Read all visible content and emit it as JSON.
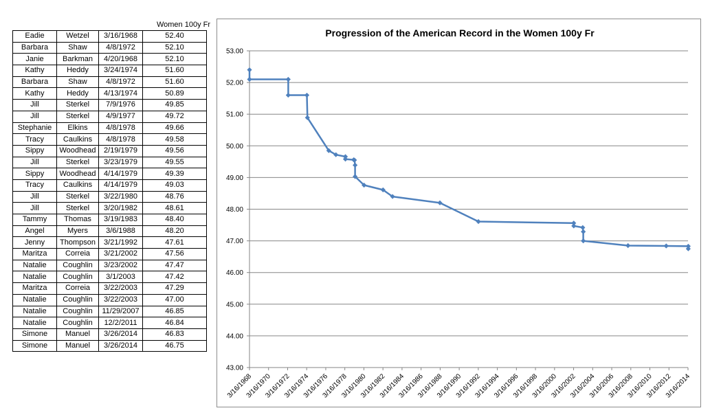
{
  "table": {
    "header": "Women 100y Fr",
    "rows": [
      {
        "first": "Eadie",
        "last": "Wetzel",
        "date": "3/16/1968",
        "time": "52.40"
      },
      {
        "first": "Barbara",
        "last": "Shaw",
        "date": "4/8/1972",
        "time": "52.10"
      },
      {
        "first": "Janie",
        "last": "Barkman",
        "date": "4/20/1968",
        "time": "52.10"
      },
      {
        "first": "Kathy",
        "last": "Heddy",
        "date": "3/24/1974",
        "time": "51.60"
      },
      {
        "first": "Barbara",
        "last": "Shaw",
        "date": "4/8/1972",
        "time": "51.60"
      },
      {
        "first": "Kathy",
        "last": "Heddy",
        "date": "4/13/1974",
        "time": "50.89"
      },
      {
        "first": "Jill",
        "last": "Sterkel",
        "date": "7/9/1976",
        "time": "49.85"
      },
      {
        "first": "Jill",
        "last": "Sterkel",
        "date": "4/9/1977",
        "time": "49.72"
      },
      {
        "first": "Stephanie",
        "last": "Elkins",
        "date": "4/8/1978",
        "time": "49.66"
      },
      {
        "first": "Tracy",
        "last": "Caulkins",
        "date": "4/8/1978",
        "time": "49.58"
      },
      {
        "first": "Sippy",
        "last": "Woodhead",
        "date": "2/19/1979",
        "time": "49.56"
      },
      {
        "first": "Jill",
        "last": "Sterkel",
        "date": "3/23/1979",
        "time": "49.55"
      },
      {
        "first": "Sippy",
        "last": "Woodhead",
        "date": "4/14/1979",
        "time": "49.39"
      },
      {
        "first": "Tracy",
        "last": "Caulkins",
        "date": "4/14/1979",
        "time": "49.03"
      },
      {
        "first": "Jill",
        "last": "Sterkel",
        "date": "3/22/1980",
        "time": "48.76"
      },
      {
        "first": "Jill",
        "last": "Sterkel",
        "date": "3/20/1982",
        "time": "48.61"
      },
      {
        "first": "Tammy",
        "last": "Thomas",
        "date": "3/19/1983",
        "time": "48.40"
      },
      {
        "first": "Angel",
        "last": "Myers",
        "date": "3/6/1988",
        "time": "48.20"
      },
      {
        "first": "Jenny",
        "last": "Thompson",
        "date": "3/21/1992",
        "time": "47.61"
      },
      {
        "first": "Maritza",
        "last": "Correia",
        "date": "3/21/2002",
        "time": "47.56"
      },
      {
        "first": "Natalie",
        "last": "Coughlin",
        "date": "3/23/2002",
        "time": "47.47"
      },
      {
        "first": "Natalie",
        "last": "Coughlin",
        "date": "3/1/2003",
        "time": "47.42"
      },
      {
        "first": "Maritza",
        "last": "Correia",
        "date": "3/22/2003",
        "time": "47.29"
      },
      {
        "first": "Natalie",
        "last": "Coughlin",
        "date": "3/22/2003",
        "time": "47.00"
      },
      {
        "first": "Natalie",
        "last": "Coughlin",
        "date": "11/29/2007",
        "time": "46.85"
      },
      {
        "first": "Natalie",
        "last": "Coughlin",
        "date": "12/2/2011",
        "time": "46.84"
      },
      {
        "first": "Simone",
        "last": "Manuel",
        "date": "3/26/2014",
        "time": "46.83"
      },
      {
        "first": "Simone",
        "last": "Manuel",
        "date": "3/26/2014",
        "time": "46.75"
      }
    ]
  },
  "chart_data": {
    "type": "line",
    "title": "Progression of the American Record in the Women 100y Fr",
    "xlabel": "",
    "ylabel": "",
    "x_type": "date",
    "xlim": [
      "3/16/1968",
      "3/16/2014"
    ],
    "x_ticks": [
      "3/16/1968",
      "3/16/1970",
      "3/16/1972",
      "3/16/1974",
      "3/16/1976",
      "3/16/1978",
      "3/16/1980",
      "3/16/1982",
      "3/16/1984",
      "3/16/1986",
      "3/16/1988",
      "3/16/1990",
      "3/16/1992",
      "3/16/1994",
      "3/16/1996",
      "3/16/1998",
      "3/16/2000",
      "3/16/2002",
      "3/16/2004",
      "3/16/2006",
      "3/16/2008",
      "3/16/2010",
      "3/16/2012",
      "3/16/2014"
    ],
    "ylim": [
      43,
      53
    ],
    "y_ticks": [
      "43.00",
      "44.00",
      "45.00",
      "46.00",
      "47.00",
      "48.00",
      "49.00",
      "50.00",
      "51.00",
      "52.00",
      "53.00"
    ],
    "grid": true,
    "legend": "none",
    "line_color": "#4f81bd",
    "gridline_color": "#868686",
    "series": [
      {
        "points": [
          {
            "x": "3/16/1968",
            "y": 52.4
          },
          {
            "x": "3/16/1968",
            "y": 52.1
          },
          {
            "x": "4/8/1972",
            "y": 52.1
          },
          {
            "x": "4/8/1972",
            "y": 51.6
          },
          {
            "x": "3/24/1974",
            "y": 51.6
          },
          {
            "x": "4/13/1974",
            "y": 50.89
          },
          {
            "x": "7/9/1976",
            "y": 49.85
          },
          {
            "x": "4/9/1977",
            "y": 49.72
          },
          {
            "x": "4/8/1978",
            "y": 49.66
          },
          {
            "x": "4/8/1978",
            "y": 49.58
          },
          {
            "x": "2/19/1979",
            "y": 49.56
          },
          {
            "x": "3/23/1979",
            "y": 49.55
          },
          {
            "x": "4/14/1979",
            "y": 49.39
          },
          {
            "x": "4/14/1979",
            "y": 49.03
          },
          {
            "x": "3/22/1980",
            "y": 48.76
          },
          {
            "x": "3/20/1982",
            "y": 48.61
          },
          {
            "x": "3/19/1983",
            "y": 48.4
          },
          {
            "x": "3/6/1988",
            "y": 48.2
          },
          {
            "x": "3/21/1992",
            "y": 47.61
          },
          {
            "x": "3/21/2002",
            "y": 47.56
          },
          {
            "x": "3/23/2002",
            "y": 47.47
          },
          {
            "x": "3/1/2003",
            "y": 47.42
          },
          {
            "x": "3/22/2003",
            "y": 47.29
          },
          {
            "x": "3/22/2003",
            "y": 47.0
          },
          {
            "x": "11/29/2007",
            "y": 46.85
          },
          {
            "x": "12/2/2011",
            "y": 46.84
          },
          {
            "x": "3/26/2014",
            "y": 46.83
          },
          {
            "x": "3/26/2014",
            "y": 46.75
          }
        ]
      }
    ]
  }
}
